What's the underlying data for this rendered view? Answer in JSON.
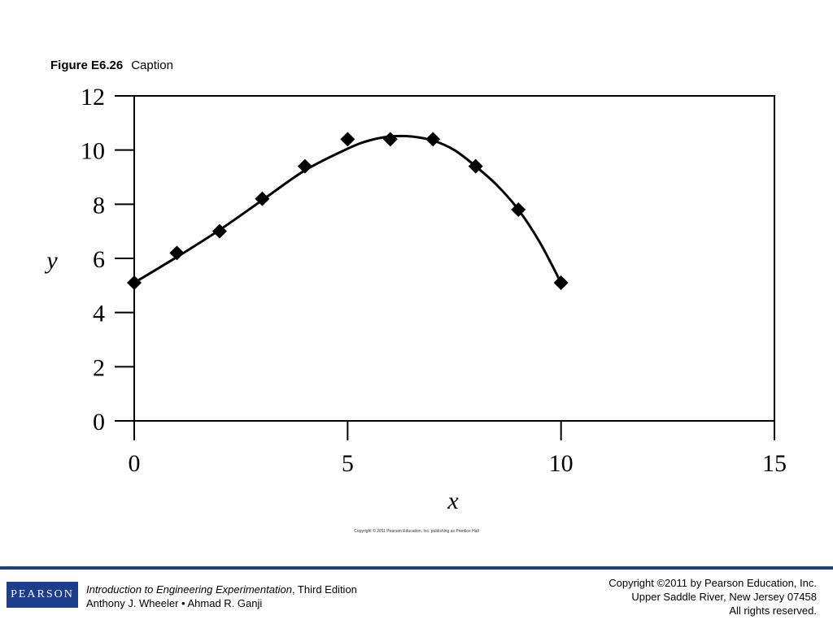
{
  "figure": {
    "number": "Figure E6.26",
    "caption": "Caption"
  },
  "chart_data": {
    "type": "scatter",
    "xlabel": "x",
    "ylabel": "y",
    "xlim": [
      0,
      15
    ],
    "ylim": [
      0,
      12
    ],
    "x_ticks": [
      "0",
      "5",
      "10",
      "15"
    ],
    "y_ticks": [
      "0",
      "2",
      "4",
      "6",
      "8",
      "10",
      "12"
    ],
    "grid": false,
    "series": [
      {
        "marker": "diamond",
        "x": [
          0,
          1,
          2,
          3,
          4,
          5,
          6,
          7,
          8,
          9,
          10
        ],
        "y": [
          5.1,
          6.2,
          7.0,
          8.2,
          9.4,
          10.4,
          10.4,
          10.4,
          9.4,
          7.8,
          5.1
        ]
      }
    ],
    "fit_curve": {
      "x": [
        0,
        1,
        2,
        3,
        4,
        5,
        5.5,
        6,
        6.5,
        7,
        7.5,
        8,
        8.5,
        9,
        9.5,
        10
      ],
      "y": [
        5.1,
        6.05,
        7.05,
        8.15,
        9.25,
        10.05,
        10.35,
        10.5,
        10.5,
        10.35,
        10.0,
        9.4,
        8.7,
        7.8,
        6.6,
        5.1
      ]
    },
    "colors": {
      "marker": "#000000",
      "line": "#000000"
    }
  },
  "plot_copyright": "Copyright © 2011 Pearson Education, Inc. publishing as Prentice Hall",
  "footer": {
    "logo_text": "PEARSON",
    "book_title": "Introduction to Engineering Experimentation",
    "book_edition": ", Third Edition",
    "authors": "Anthony J. Wheeler • Ahmad R. Ganji",
    "copyright_line1": "Copyright ©2011 by Pearson Education, Inc.",
    "copyright_line2": "Upper Saddle River, New Jersey 07458",
    "copyright_line3": "All rights reserved.",
    "accent_color": "#1c3d8c"
  }
}
